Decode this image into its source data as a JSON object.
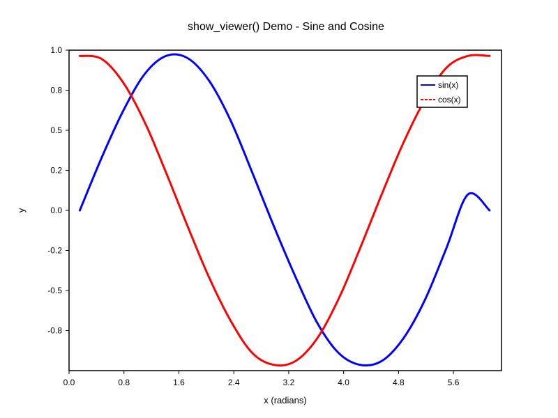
{
  "chart_data": {
    "type": "line",
    "title": "show_viewer() Demo - Sine and Cosine",
    "xlabel": "x (radians)",
    "ylabel": "y",
    "xlim": [
      0.0,
      6.3
    ],
    "ylim": [
      -1.0,
      1.0
    ],
    "xticks": [
      "0.0",
      "0.8",
      "1.6",
      "2.4",
      "3.2",
      "4.0",
      "4.8",
      "5.6"
    ],
    "xtick_values": [
      0.0,
      0.8,
      1.6,
      2.4,
      3.2,
      4.0,
      4.8,
      5.6
    ],
    "yticks": [
      "1.0",
      "0.8",
      "0.5",
      "0.2",
      "0.0",
      "-0.2",
      "-0.5",
      "-0.8"
    ],
    "ytick_values": [
      1.0,
      0.75,
      0.5,
      0.25,
      0.0,
      -0.25,
      -0.5,
      -0.75
    ],
    "grid": false,
    "legend_position": "top-right",
    "series": [
      {
        "name": "sin(x)",
        "style": "solid",
        "color": "#0000ff",
        "x": [
          0.157,
          0.471,
          0.785,
          1.1,
          1.414,
          1.728,
          2.042,
          2.356,
          2.67,
          2.985,
          3.299,
          3.613,
          3.927,
          4.241,
          4.555,
          4.869,
          5.184,
          5.498,
          5.812,
          6.126
        ],
        "y": [
          0.0,
          0.325,
          0.618,
          0.85,
          0.964,
          0.95,
          0.808,
          0.559,
          0.235,
          -0.1,
          -0.415,
          -0.7,
          -0.89,
          -0.964,
          -0.94,
          -0.8,
          -0.559,
          -0.235,
          0.1,
          0.0
        ]
      },
      {
        "name": "cos(x)",
        "style": "dashed",
        "color": "#ff0000",
        "x": [
          0.157,
          0.471,
          0.785,
          1.1,
          1.414,
          1.728,
          2.042,
          2.356,
          2.67,
          2.985,
          3.299,
          3.613,
          3.927,
          4.241,
          4.555,
          4.869,
          5.184,
          5.498,
          5.812,
          6.126
        ],
        "y": [
          0.964,
          0.946,
          0.8,
          0.552,
          0.235,
          -0.1,
          -0.42,
          -0.69,
          -0.89,
          -0.964,
          -0.94,
          -0.8,
          -0.552,
          -0.235,
          0.1,
          0.42,
          0.69,
          0.89,
          0.964,
          0.964
        ]
      }
    ]
  }
}
